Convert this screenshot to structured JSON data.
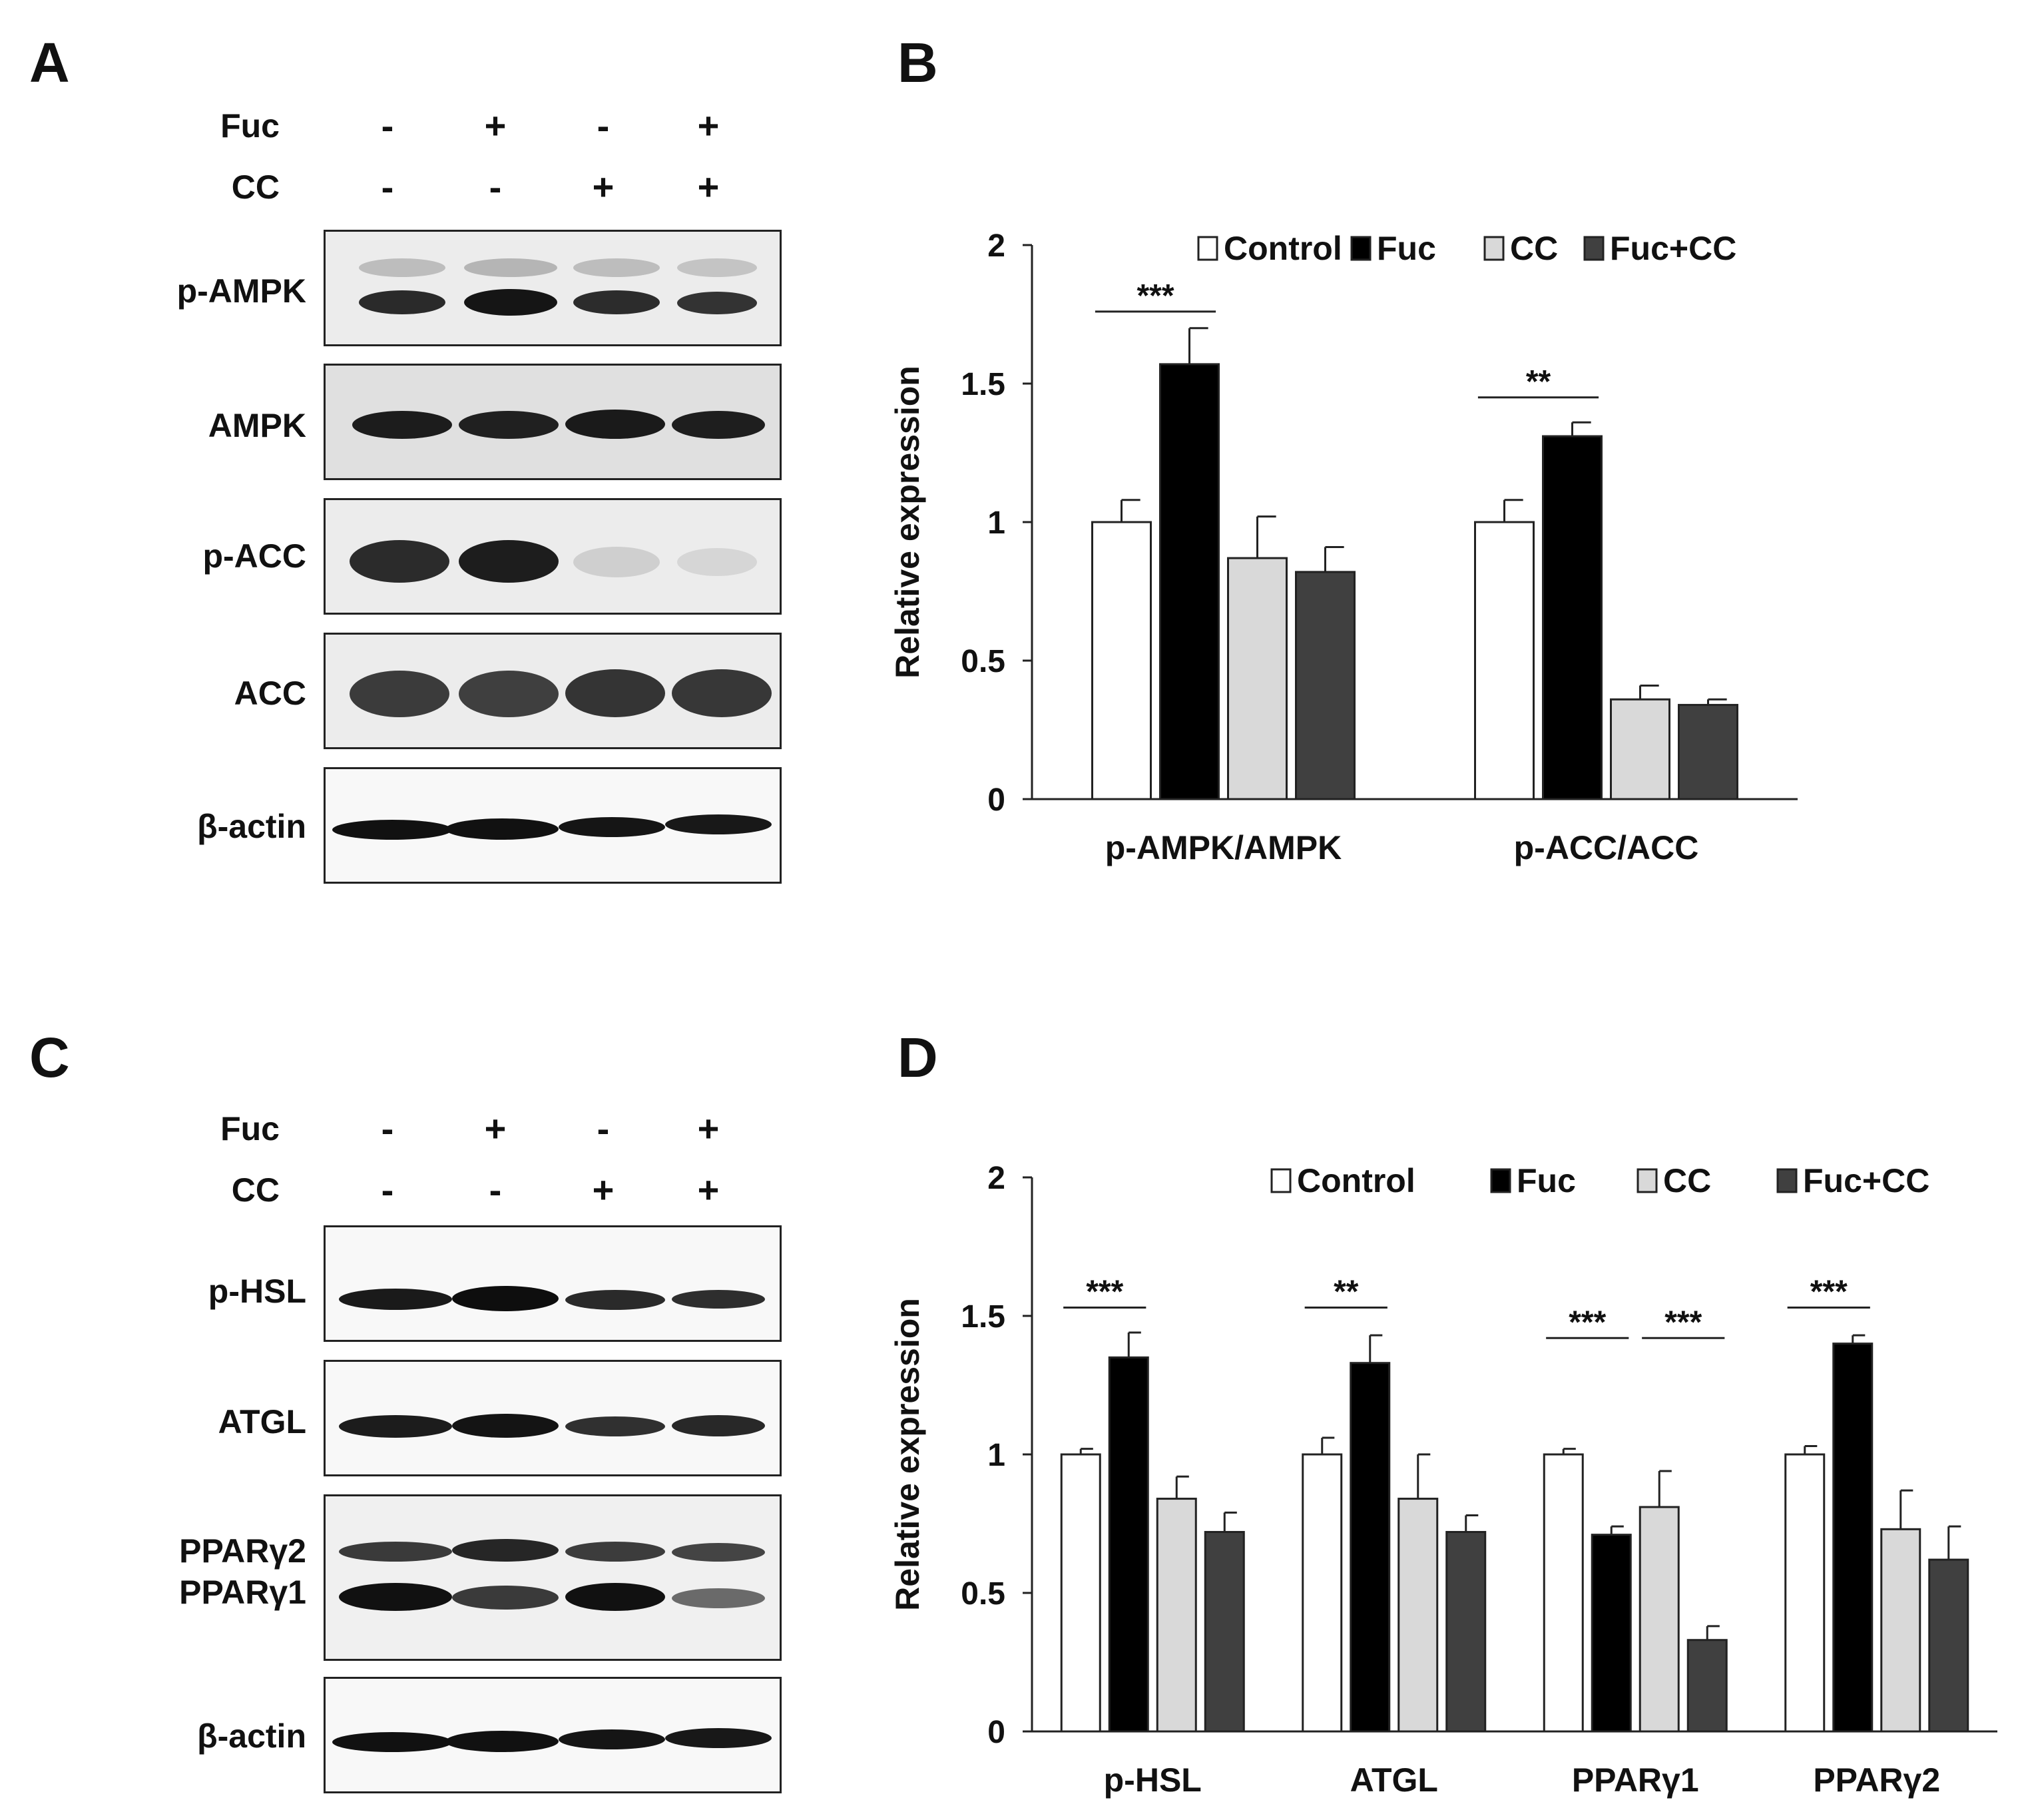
{
  "panels": {
    "A": {
      "letter": "A",
      "conditions": [
        {
          "label": "Fuc",
          "values": [
            "-",
            "+",
            "-",
            "+"
          ]
        },
        {
          "label": "CC",
          "values": [
            "-",
            "-",
            "+",
            "+"
          ]
        }
      ],
      "blots": [
        {
          "label": "p-AMPK"
        },
        {
          "label": "AMPK"
        },
        {
          "label": "p-ACC"
        },
        {
          "label": "ACC"
        },
        {
          "label": "β-actin"
        }
      ]
    },
    "B": {
      "letter": "B"
    },
    "C": {
      "letter": "C",
      "conditions": [
        {
          "label": "Fuc",
          "values": [
            "-",
            "+",
            "-",
            "+"
          ]
        },
        {
          "label": "CC",
          "values": [
            "-",
            "-",
            "+",
            "+"
          ]
        }
      ],
      "blots": [
        {
          "label": "p-HSL"
        },
        {
          "label": "ATGL"
        },
        {
          "label": "PPARγ2",
          "label2": "PPARγ1"
        },
        {
          "label": "β-actin"
        }
      ]
    },
    "D": {
      "letter": "D"
    }
  },
  "colors": {
    "Control": "#ffffff",
    "Fuc": "#000000",
    "CC": "#d9d9d9",
    "Fuc+CC": "#404040"
  },
  "chart_data": [
    {
      "type": "bar",
      "panel": "B",
      "ylabel": "Relative expression",
      "ylim": [
        0,
        2
      ],
      "yticks": [
        "0",
        "0.5",
        "1",
        "1.5",
        "2"
      ],
      "categories": [
        "p-AMPK/AMPK",
        "p-ACC/ACC"
      ],
      "series": [
        {
          "name": "Control",
          "values": [
            1.0,
            1.0
          ],
          "errors": [
            0.08,
            0.08
          ]
        },
        {
          "name": "Fuc",
          "values": [
            1.57,
            1.31
          ],
          "errors": [
            0.13,
            0.05
          ]
        },
        {
          "name": "CC",
          "values": [
            0.87,
            0.36
          ],
          "errors": [
            0.15,
            0.05
          ]
        },
        {
          "name": "Fuc+CC",
          "values": [
            0.82,
            0.34
          ],
          "errors": [
            0.09,
            0.02
          ]
        }
      ],
      "annotations": [
        {
          "text": "***",
          "category": 0,
          "from": 0,
          "to": 1,
          "y": 1.76
        },
        {
          "text": "**",
          "category": 1,
          "from": 0,
          "to": 1,
          "y": 1.45
        }
      ],
      "legend": "top"
    },
    {
      "type": "bar",
      "panel": "D",
      "ylabel": "Relative expression",
      "ylim": [
        0,
        2
      ],
      "yticks": [
        "0",
        "0.5",
        "1",
        "1.5",
        "2"
      ],
      "categories": [
        "p-HSL",
        "ATGL",
        "PPARγ1",
        "PPARγ2"
      ],
      "series": [
        {
          "name": "Control",
          "values": [
            1.0,
            1.0,
            1.0,
            1.0
          ],
          "errors": [
            0.02,
            0.06,
            0.02,
            0.03
          ]
        },
        {
          "name": "Fuc",
          "values": [
            1.35,
            1.33,
            0.71,
            1.4
          ],
          "errors": [
            0.09,
            0.1,
            0.03,
            0.03
          ]
        },
        {
          "name": "CC",
          "values": [
            0.84,
            0.84,
            0.81,
            0.73
          ],
          "errors": [
            0.08,
            0.16,
            0.13,
            0.14
          ]
        },
        {
          "name": "Fuc+CC",
          "values": [
            0.72,
            0.72,
            0.33,
            0.62
          ],
          "errors": [
            0.07,
            0.06,
            0.05,
            0.12
          ]
        }
      ],
      "annotations": [
        {
          "text": "***",
          "category": 0,
          "from": 0,
          "to": 1,
          "y": 1.53
        },
        {
          "text": "**",
          "category": 1,
          "from": 0,
          "to": 1,
          "y": 1.53
        },
        {
          "text": "***",
          "category": 2,
          "from": 0,
          "to": 1,
          "y": 1.42
        },
        {
          "text": "***",
          "category": 2,
          "from": 2,
          "to": 3,
          "y": 1.42
        },
        {
          "text": "***",
          "category": 3,
          "from": 0,
          "to": 1,
          "y": 1.53
        }
      ],
      "legend": "top"
    }
  ]
}
